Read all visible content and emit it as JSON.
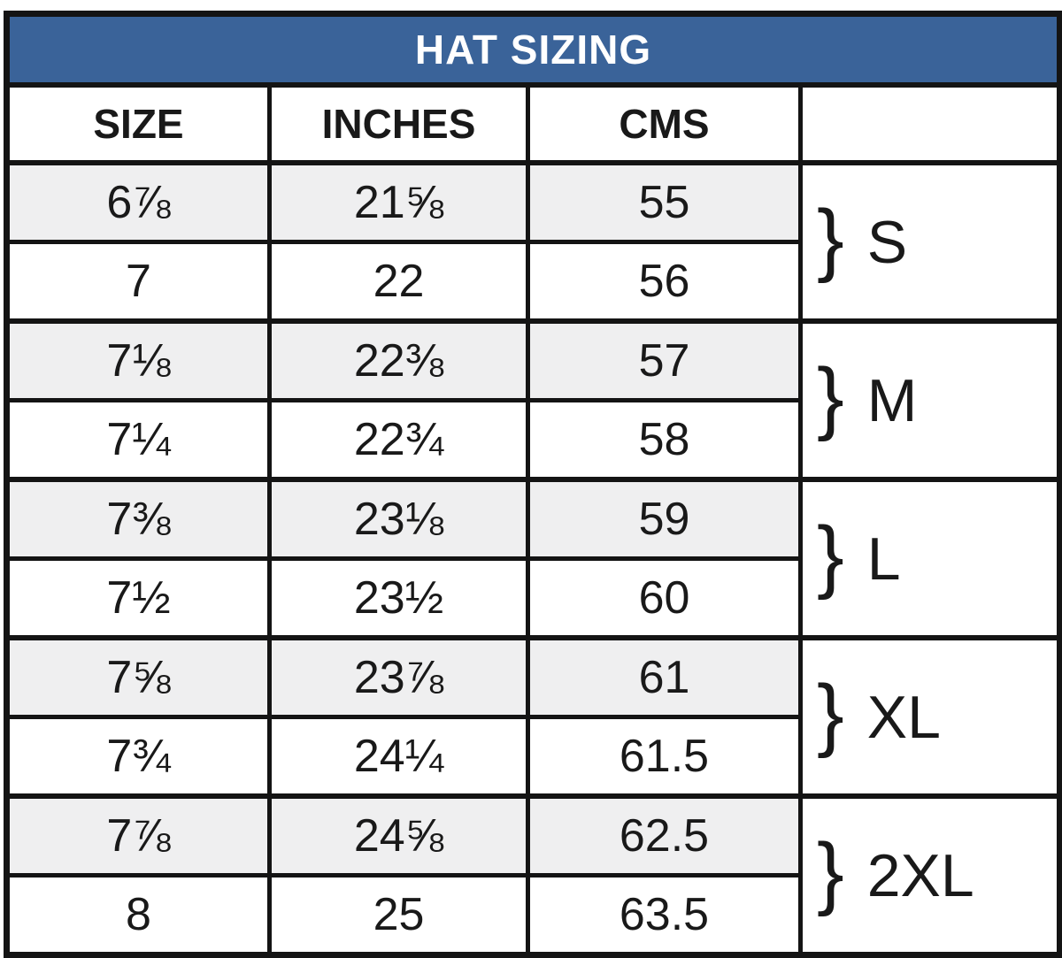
{
  "title": "HAT SIZING",
  "brace_glyph": "}",
  "colors": {
    "title_bg": "#3a6399",
    "title_text": "#ffffff",
    "border": "#141414",
    "shaded_row": "#efeff0",
    "text": "#191919"
  },
  "chart_data": {
    "type": "table",
    "title": "HAT SIZING",
    "columns": [
      "SIZE",
      "INCHES",
      "CMS",
      ""
    ],
    "rows": [
      [
        "6⅞",
        "21⅝",
        "55"
      ],
      [
        "7",
        "22",
        "56"
      ],
      [
        "7⅛",
        "22⅜",
        "57"
      ],
      [
        "7¼",
        "22¾",
        "58"
      ],
      [
        "7⅜",
        "23⅛",
        "59"
      ],
      [
        "7½",
        "23½",
        "60"
      ],
      [
        "7⅝",
        "23⅞",
        "61"
      ],
      [
        "7¾",
        "24¼",
        "61.5"
      ],
      [
        "7⅞",
        "24⅝",
        "62.5"
      ],
      [
        "8",
        "25",
        "63.5"
      ]
    ],
    "row_groups": [
      {
        "rows": [
          0,
          1
        ],
        "label": "S"
      },
      {
        "rows": [
          2,
          3
        ],
        "label": "M"
      },
      {
        "rows": [
          4,
          5
        ],
        "label": "L"
      },
      {
        "rows": [
          6,
          7
        ],
        "label": "XL"
      },
      {
        "rows": [
          8,
          9
        ],
        "label": "2XL"
      }
    ],
    "layout_hints": {
      "shaded_rows": [
        0,
        2,
        4,
        6,
        8
      ],
      "group_label_prefix": "}",
      "grid": "on"
    }
  }
}
